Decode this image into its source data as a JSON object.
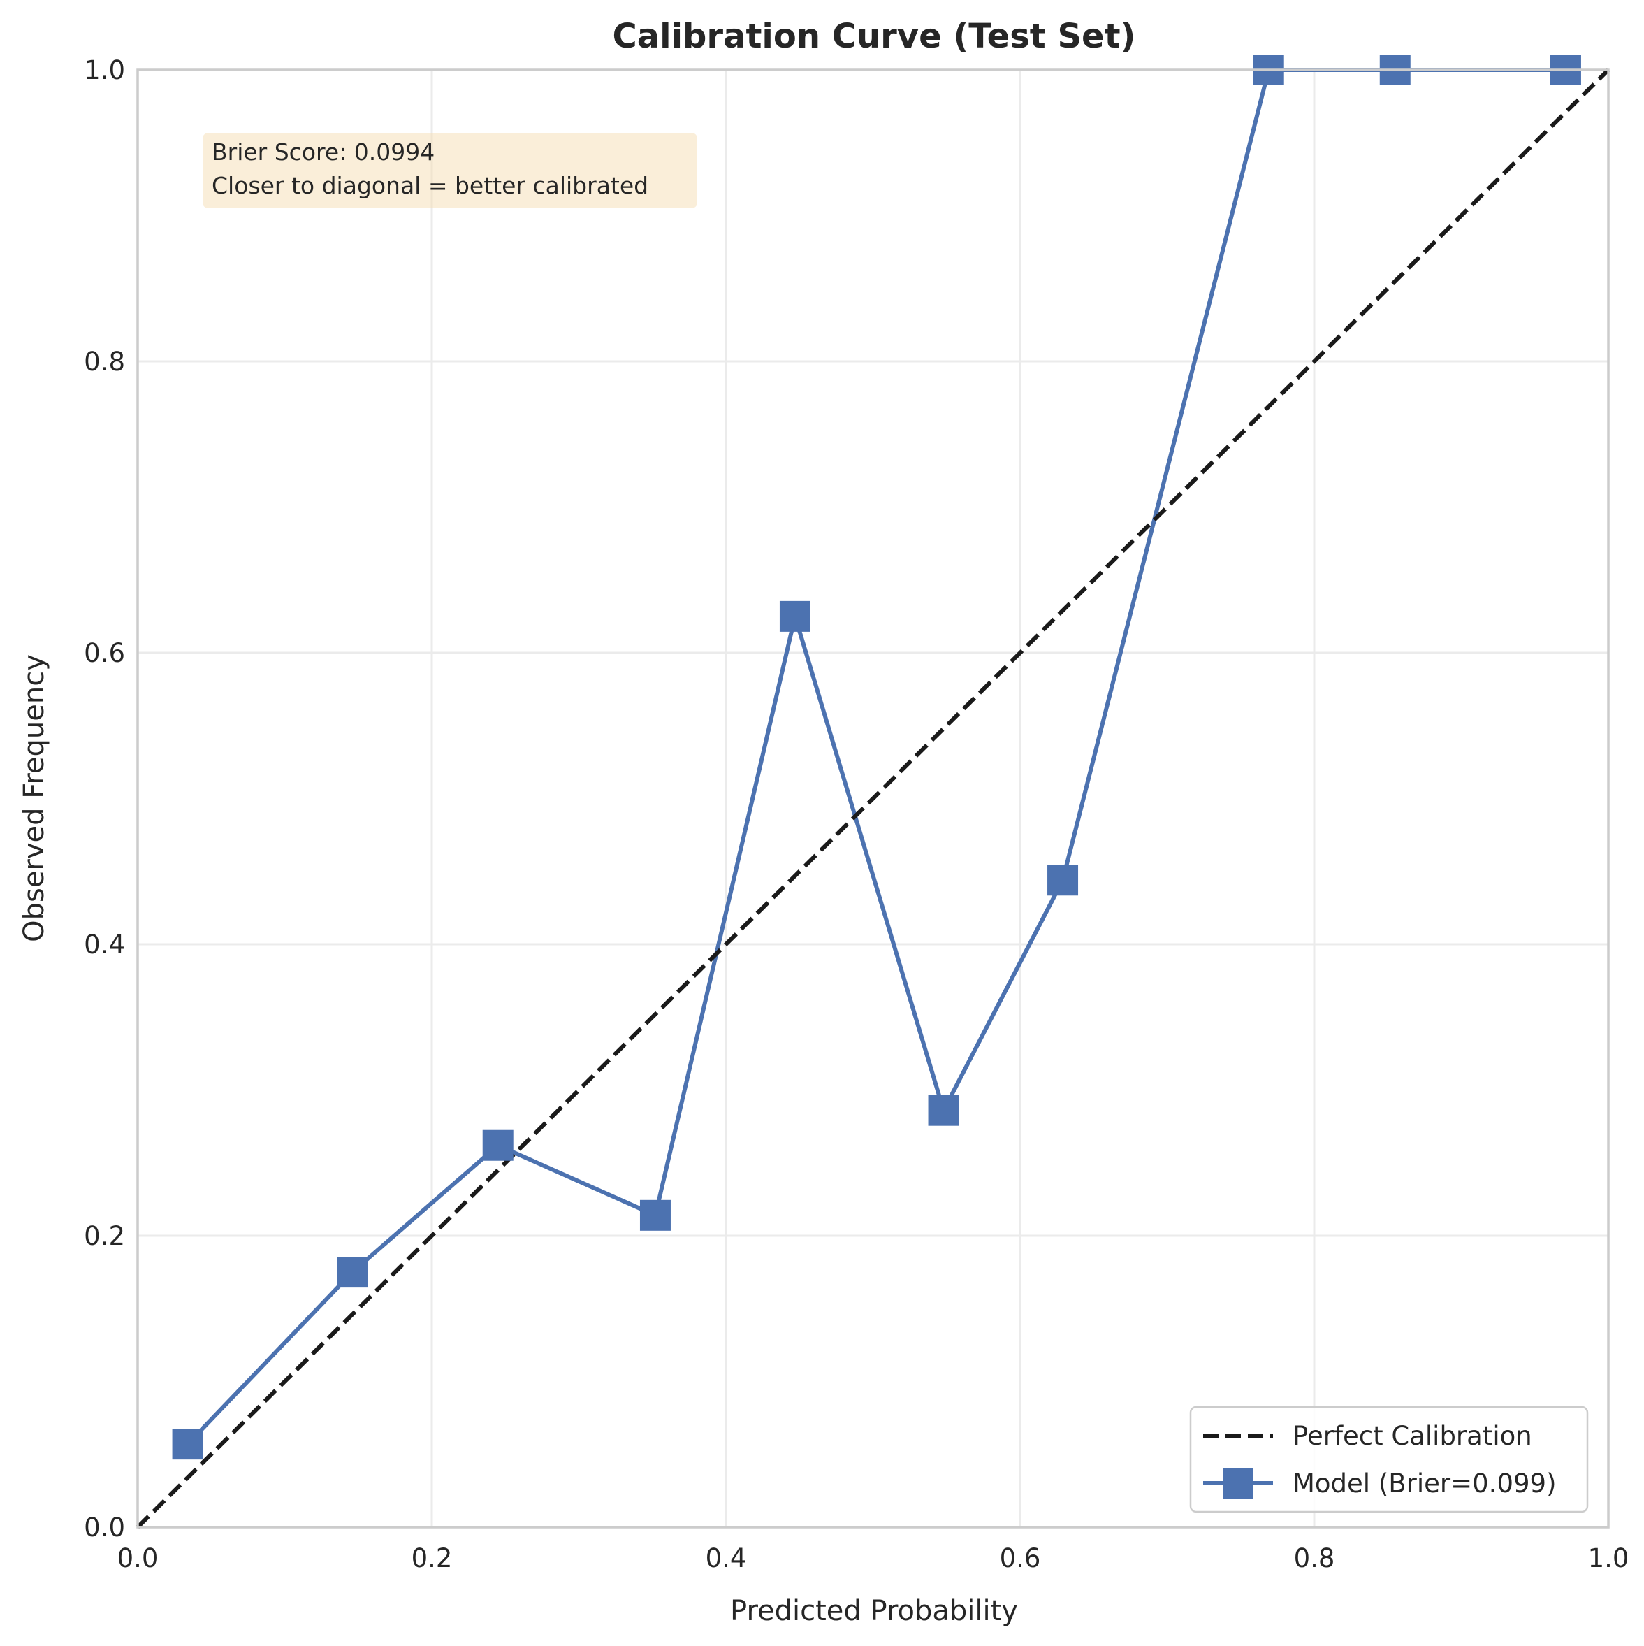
{
  "chart_data": {
    "type": "line",
    "title": "Calibration Curve (Test Set)",
    "xlabel": "Predicted Probability",
    "ylabel": "Observed Frequency",
    "xlim": [
      0.0,
      1.0
    ],
    "ylim": [
      0.0,
      1.0
    ],
    "xticks": [
      "0.0",
      "0.2",
      "0.4",
      "0.6",
      "0.8",
      "1.0"
    ],
    "yticks": [
      "0.0",
      "0.2",
      "0.4",
      "0.6",
      "0.8",
      "1.0"
    ],
    "grid": true,
    "legend_position": "bottom-right",
    "annotation": {
      "lines": [
        "Brier Score: 0.0994",
        "Closer to diagonal = better calibrated"
      ],
      "position": "top-left",
      "background": "#f5deb3"
    },
    "series": [
      {
        "name": "Perfect Calibration",
        "style": "dashed",
        "color": "#1a1a1a",
        "x": [
          0.0,
          1.0
        ],
        "y": [
          0.0,
          1.0
        ]
      },
      {
        "name": "Model (Brier=0.099)",
        "style": "solid",
        "marker": "square",
        "color": "#4c72b0",
        "x": [
          0.034,
          0.146,
          0.245,
          0.352,
          0.447,
          0.548,
          0.629,
          0.769,
          0.855,
          0.971
        ],
        "y": [
          0.057,
          0.175,
          0.262,
          0.214,
          0.625,
          0.286,
          0.444,
          1.0,
          1.0,
          1.0
        ]
      }
    ]
  }
}
